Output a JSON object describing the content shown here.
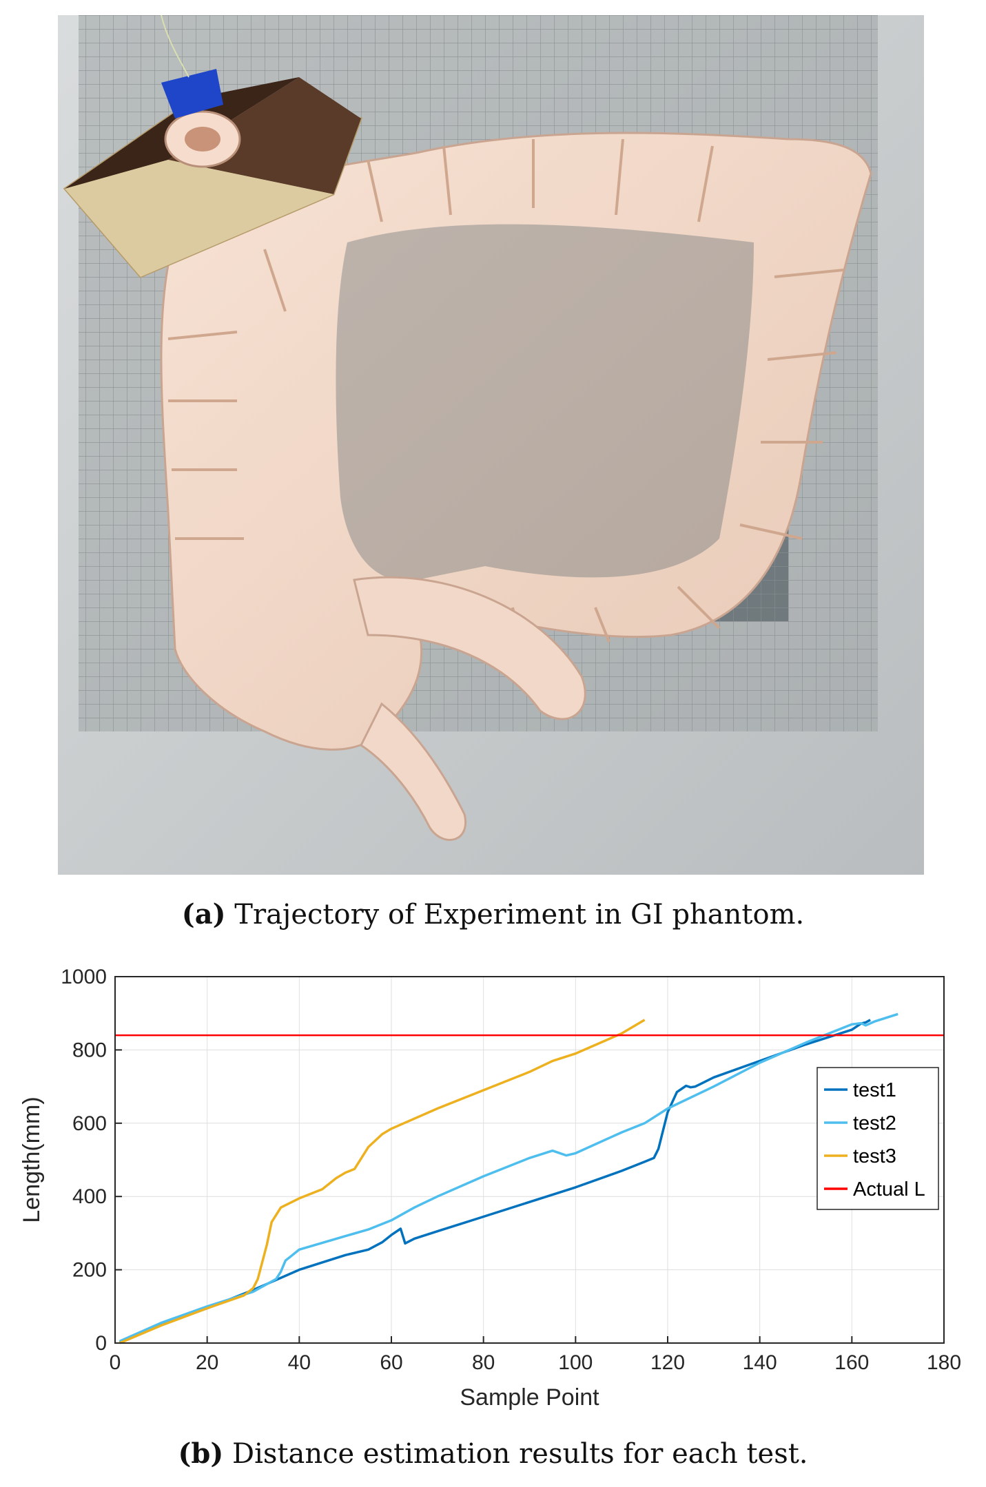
{
  "figure": {
    "caption_a": {
      "label": "(a)",
      "text": "Trajectory of Experiment in GI phantom."
    },
    "caption_b": {
      "label": "(b)",
      "text": "Distance estimation results for each test."
    }
  },
  "colors": {
    "test1": "#0072BD",
    "test2": "#4DBEEE",
    "test3": "#EDB120",
    "actual": "#FF0000",
    "grid": "#DEDEDE",
    "axis": "#262626"
  },
  "chart_data": {
    "type": "line",
    "title": "",
    "xlabel": "Sample Point",
    "ylabel": "Length(mm)",
    "xlim": [
      0,
      180
    ],
    "ylim": [
      0,
      1000
    ],
    "xticks": [
      0,
      20,
      40,
      60,
      80,
      100,
      120,
      140,
      160,
      180
    ],
    "yticks": [
      0,
      200,
      400,
      600,
      800,
      1000
    ],
    "grid": true,
    "legend_position": "right",
    "series": [
      {
        "name": "test1",
        "x": [
          1,
          10,
          20,
          30,
          40,
          50,
          55,
          58,
          60,
          62,
          63,
          65,
          70,
          80,
          90,
          100,
          110,
          115,
          117,
          118,
          120,
          122,
          124,
          125,
          126,
          130,
          140,
          150,
          160,
          162,
          163,
          164
        ],
        "y": [
          2,
          50,
          95,
          145,
          200,
          240,
          255,
          275,
          295,
          312,
          272,
          285,
          305,
          345,
          385,
          425,
          470,
          495,
          505,
          530,
          630,
          685,
          702,
          698,
          700,
          725,
          770,
          815,
          855,
          872,
          875,
          882
        ]
      },
      {
        "name": "test2",
        "x": [
          1,
          10,
          20,
          30,
          35,
          36,
          37,
          38,
          40,
          50,
          55,
          58,
          60,
          65,
          70,
          80,
          90,
          95,
          98,
          100,
          110,
          115,
          120,
          130,
          140,
          150,
          160,
          162,
          163,
          165,
          170
        ],
        "y": [
          5,
          55,
          100,
          140,
          175,
          195,
          225,
          235,
          255,
          292,
          310,
          325,
          335,
          370,
          400,
          455,
          505,
          525,
          512,
          518,
          575,
          600,
          640,
          700,
          765,
          820,
          870,
          873,
          867,
          878,
          898
        ]
      },
      {
        "name": "test3",
        "x": [
          1,
          10,
          20,
          28,
          30,
          31,
          33,
          34,
          36,
          40,
          45,
          48,
          50,
          52,
          55,
          58,
          60,
          70,
          80,
          90,
          95,
          100,
          110,
          115
        ],
        "y": [
          0,
          48,
          95,
          130,
          150,
          175,
          270,
          330,
          370,
          395,
          420,
          450,
          465,
          475,
          535,
          570,
          585,
          640,
          690,
          740,
          770,
          790,
          845,
          882
        ]
      },
      {
        "name": "Actual L",
        "x": [
          0,
          180
        ],
        "y": [
          840,
          840
        ]
      }
    ]
  }
}
